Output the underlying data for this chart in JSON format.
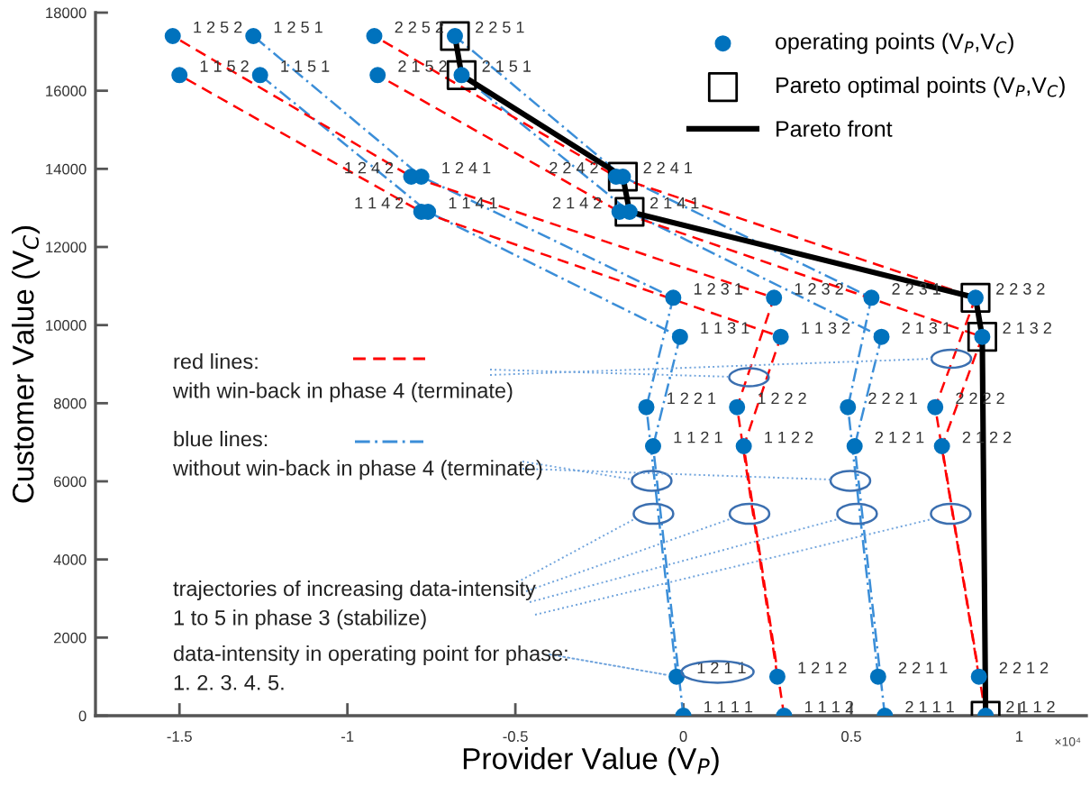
{
  "chart_data": {
    "type": "scatter",
    "xlabel": "Provider Value (V$_{P}$)",
    "ylabel": "Customer Value (V$_{C}$)",
    "xlim": [
      -1.75,
      1.2
    ],
    "ylim": [
      0,
      18000
    ],
    "xticks": [
      {
        "value": -1.5,
        "label": "-1.5"
      },
      {
        "value": -1,
        "label": "-1"
      },
      {
        "value": -0.5,
        "label": "-0.5"
      },
      0,
      0.5,
      1
    ],
    "yticks": [
      0,
      2000,
      4000,
      6000,
      8000,
      10000,
      12000,
      14000,
      16000,
      18000
    ],
    "grid": false,
    "legend": "top right",
    "series": [
      {
        "type": "line",
        "color": "#3b8ed8",
        "line_style": "dashdot",
        "x": [
          0,
          -0.09,
          -0.01,
          -0.76,
          -1.26
        ],
        "values": [
          0,
          6900,
          9700,
          12900,
          16400
        ]
      },
      {
        "type": "line",
        "color": "#ff0000",
        "line_style": "dashed",
        "x": [
          0.3,
          0.18,
          0.29,
          -0.78,
          -1.5
        ],
        "values": [
          0,
          6900,
          9700,
          12900,
          16400
        ]
      },
      {
        "type": "line",
        "color": "#3b8ed8",
        "line_style": "dashdot",
        "x": [
          -0.02,
          -0.11,
          -0.03,
          -0.78,
          -1.28
        ],
        "values": [
          1000,
          7900,
          10700,
          13800,
          17400
        ]
      },
      {
        "type": "line",
        "color": "#ff0000",
        "line_style": "dashed",
        "x": [
          0.28,
          0.16,
          0.27,
          -0.81,
          -1.52
        ],
        "values": [
          1000,
          7900,
          10700,
          13800,
          17400
        ]
      },
      {
        "type": "line",
        "color": "#3b8ed8",
        "line_style": "dashdot",
        "x": [
          0.6,
          0.51,
          0.59,
          -0.16,
          -0.66
        ],
        "values": [
          0,
          6900,
          9700,
          12900,
          16400
        ]
      },
      {
        "type": "line",
        "color": "#ff0000",
        "line_style": "dashed",
        "x": [
          0.9,
          0.77,
          0.89,
          -0.19,
          -0.91
        ],
        "values": [
          0,
          6900,
          9700,
          12900,
          16400
        ]
      },
      {
        "type": "line",
        "color": "#3b8ed8",
        "line_style": "dashdot",
        "x": [
          0.58,
          0.49,
          0.56,
          -0.18,
          -0.68
        ],
        "values": [
          1000,
          7900,
          10700,
          13800,
          17400
        ]
      },
      {
        "type": "line",
        "color": "#ff0000",
        "line_style": "dashed",
        "x": [
          0.88,
          0.75,
          0.87,
          -0.2,
          -0.92
        ],
        "values": [
          1000,
          7900,
          10700,
          13800,
          17400
        ]
      },
      {
        "name": "operating points (V$_{P}$,V$_{C}$)",
        "color": "#0072bd",
        "marker": "circle",
        "x": [
          0,
          -0.09,
          -0.01,
          -0.76,
          -1.26,
          0.3,
          0.18,
          0.29,
          -0.78,
          -1.5,
          -0.02,
          -0.11,
          -0.03,
          -0.78,
          -1.28,
          0.28,
          0.16,
          0.27,
          -0.81,
          -1.52,
          0.6,
          0.51,
          0.59,
          -0.16,
          -0.66,
          0.9,
          0.77,
          0.89,
          -0.19,
          -0.91,
          0.58,
          0.49,
          0.56,
          -0.18,
          -0.68,
          0.88,
          0.75,
          0.87,
          -0.2,
          -0.92
        ],
        "values": [
          0,
          6900,
          9700,
          12900,
          16400,
          0,
          6900,
          9700,
          12900,
          16400,
          1000,
          7900,
          10700,
          13800,
          17400,
          1000,
          7900,
          10700,
          13800,
          17400,
          0,
          6900,
          9700,
          12900,
          16400,
          0,
          6900,
          9700,
          12900,
          16400,
          1000,
          7900,
          10700,
          13800,
          17400,
          1000,
          7900,
          10700,
          13800,
          17400
        ]
      },
      {
        "name": "Pareto optimal points (V$_{P}$,V$_{C}$)",
        "color": "#000000",
        "marker": "square",
        "x": [
          -0.68,
          -0.66,
          -0.18,
          -0.16,
          0.87,
          0.89,
          0.9
        ],
        "values": [
          17400,
          16400,
          13800,
          12900,
          10700,
          9700,
          0
        ]
      },
      {
        "type": "line",
        "name": "Pareto front",
        "color": "#000000",
        "line_style": "solid",
        "x": [
          -0.68,
          -0.66,
          -0.18,
          -0.16,
          0.87,
          0.89,
          0.9
        ],
        "values": [
          17400,
          16400,
          13800,
          12900,
          10700,
          9700,
          0
        ]
      }
    ],
    "annotations": [
      "red lines:\nwith win-back in phase 4 (terminate)",
      "blue lines:\nwithout win-back in phase 4 (terminate)",
      "trajectories of increasing data-intensity\n1 to 5 in phase 3 (stabilize)",
      {
        "text": "data-intensity in operating point for phase:\n1. 2. 3. 4. 5.",
        "x": -0.02,
        "y": 1000
      },
      "×10⁴",
      {
        "text": "1 1 1 1",
        "x": 0,
        "y": 0
      },
      {
        "text": "1 1 2 1",
        "x": -0.09,
        "y": 6900
      },
      {
        "text": "1 1 3 1",
        "x": -0.01,
        "y": 9700
      },
      {
        "text": "1 1 4 1",
        "x": -0.76,
        "y": 12900
      },
      {
        "text": "1 1 5 1",
        "x": -1.26,
        "y": 16400
      },
      {
        "text": "1 1 1 2",
        "x": 0.3,
        "y": 0
      },
      {
        "text": "1 1 2 2",
        "x": 0.18,
        "y": 6900
      },
      {
        "text": "1 1 3 2",
        "x": 0.29,
        "y": 9700
      },
      {
        "text": "1 1 4 2",
        "x": -0.78,
        "y": 12900
      },
      {
        "text": "1 1 5 2",
        "x": -1.5,
        "y": 16400
      },
      {
        "text": "1 2 1 1",
        "x": -0.02,
        "y": 1000
      },
      {
        "text": "1 2 2 1",
        "x": -0.11,
        "y": 7900
      },
      {
        "text": "1 2 3 1",
        "x": -0.03,
        "y": 10700
      },
      {
        "text": "1 2 4 1",
        "x": -0.78,
        "y": 13800
      },
      {
        "text": "1 2 5 1",
        "x": -1.28,
        "y": 17400
      },
      {
        "text": "1 2 1 2",
        "x": 0.28,
        "y": 1000
      },
      {
        "text": "1 2 2 2",
        "x": 0.16,
        "y": 7900
      },
      {
        "text": "1 2 3 2",
        "x": 0.27,
        "y": 10700
      },
      {
        "text": "1 2 4 2",
        "x": -0.81,
        "y": 13800
      },
      {
        "text": "1 2 5 2",
        "x": -1.52,
        "y": 17400
      },
      {
        "text": "2 1 1 1",
        "x": 0.6,
        "y": 0
      },
      {
        "text": "2 1 2 1",
        "x": 0.51,
        "y": 6900
      },
      {
        "text": "2 1 3 1",
        "x": 0.59,
        "y": 9700
      },
      {
        "text": "2 1 4 1",
        "x": -0.16,
        "y": 12900
      },
      {
        "text": "2 1 5 1",
        "x": -0.66,
        "y": 16400
      },
      {
        "text": "2 1 1 2",
        "x": 0.9,
        "y": 0
      },
      {
        "text": "2 1 2 2",
        "x": 0.77,
        "y": 6900
      },
      {
        "text": "2 1 3 2",
        "x": 0.89,
        "y": 9700
      },
      {
        "text": "2 1 4 2",
        "x": -0.19,
        "y": 12900
      },
      {
        "text": "2 1 5 2",
        "x": -0.91,
        "y": 16400
      },
      {
        "text": "2 2 1 1",
        "x": 0.58,
        "y": 1000
      },
      {
        "text": "2 2 2 1",
        "x": 0.49,
        "y": 7900
      },
      {
        "text": "2 2 3 1",
        "x": 0.56,
        "y": 10700
      },
      {
        "text": "2 2 4 1",
        "x": -0.18,
        "y": 13800
      },
      {
        "text": "2 2 5 1",
        "x": -0.68,
        "y": 17400
      },
      {
        "text": "2 2 1 2",
        "x": 0.88,
        "y": 1000
      },
      {
        "text": "2 2 2 2",
        "x": 0.75,
        "y": 7900
      },
      {
        "text": "2 2 3 2",
        "x": 0.87,
        "y": 10700
      },
      {
        "text": "2 2 4 2",
        "x": -0.2,
        "y": 13800
      },
      {
        "text": "2 2 5 2",
        "x": -0.92,
        "y": 17400
      }
    ]
  }
}
